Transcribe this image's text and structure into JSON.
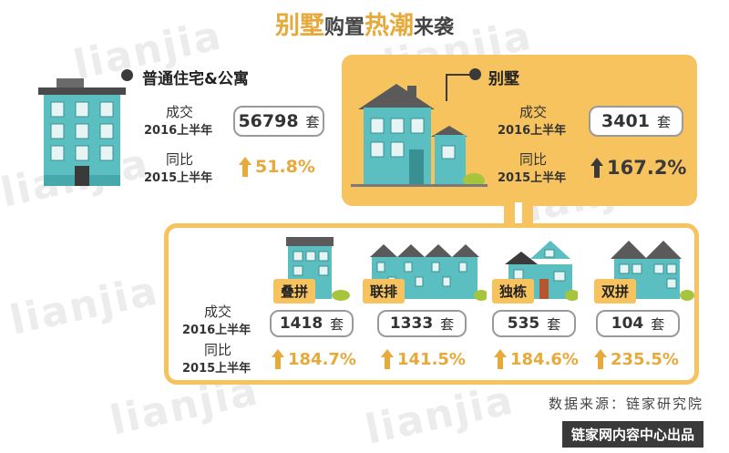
{
  "title": {
    "part1": "别墅",
    "part2": "购置",
    "part3": "热潮",
    "part4": "来袭"
  },
  "watermark": {
    "text": "lianjia"
  },
  "colors": {
    "accent": "#f6c35e",
    "growth_gold": "#e6a93a",
    "growth_dark": "#3a3a3a",
    "building_teal": "#5bbfc2"
  },
  "residential": {
    "heading": "普通住宅&公寓",
    "deal_label": "成交",
    "deal_period": "2016上半年",
    "deal_value": "56798",
    "unit": "套",
    "yoy_label": "同比",
    "yoy_period": "2015上半年",
    "yoy_value": "51.8%"
  },
  "villa": {
    "heading": "别墅",
    "deal_label": "成交",
    "deal_period": "2016上半年",
    "deal_value": "3401",
    "unit": "套",
    "yoy_label": "同比",
    "yoy_period": "2015上半年",
    "yoy_value": "167.2%"
  },
  "subtypes": {
    "deal_label": "成交",
    "deal_period": "2016上半年",
    "yoy_label": "同比",
    "yoy_period": "2015上半年",
    "unit": "套",
    "items": [
      {
        "name": "叠拼",
        "value": "1418",
        "yoy": "184.7%",
        "icon": "stacked-villa-icon"
      },
      {
        "name": "联排",
        "value": "1333",
        "yoy": "141.5%",
        "icon": "townhouse-icon"
      },
      {
        "name": "独栋",
        "value": "535",
        "yoy": "184.6%",
        "icon": "detached-house-icon"
      },
      {
        "name": "双拼",
        "value": "104",
        "yoy": "235.5%",
        "icon": "semi-detached-icon"
      }
    ]
  },
  "source": "数据来源：链家研究院",
  "footer": "链家网内容中心出品"
}
